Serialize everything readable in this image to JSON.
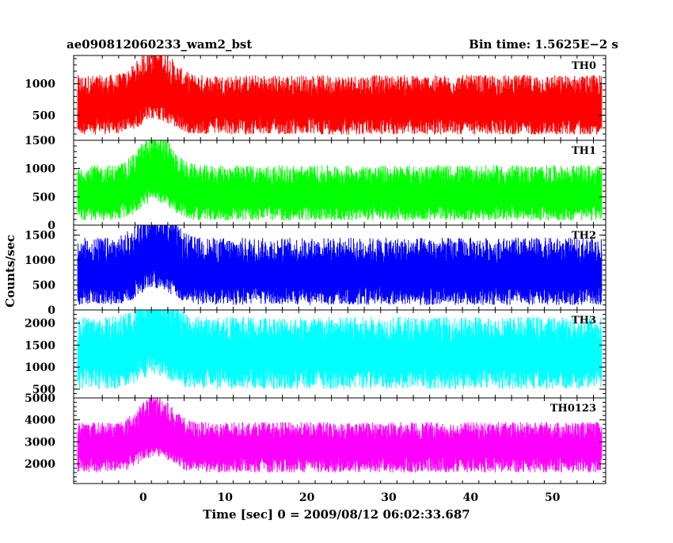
{
  "chart_data": {
    "type": "line",
    "title_left": "ae090812060233_wam2_bst",
    "title_right": "Bin time: 1.5625E−2 s",
    "xlabel": "Time [sec] 0 = 2009/08/12 06:02:33.687",
    "ylabel": "Counts/sec",
    "xlim": [
      -8.5,
      56.5
    ],
    "x_ticks": [
      "0",
      "10",
      "20",
      "30",
      "40",
      "50"
    ],
    "x_tick_values": [
      0,
      10,
      20,
      30,
      40,
      50
    ],
    "data_x_range": [
      -8,
      56
    ],
    "panels": [
      {
        "name": "TH0",
        "color": "#ff0000",
        "ylim": [
          100,
          1450
        ],
        "y_ticks": [
          "500",
          "1000"
        ],
        "y_tick_values": [
          500,
          1000
        ],
        "base": 620,
        "spread_low": 430,
        "spread_high": 520,
        "burst_peak": 1300
      },
      {
        "name": "TH1",
        "color": "#00ff00",
        "ylim": [
          0,
          1500
        ],
        "y_ticks": [
          "0",
          "500",
          "1000",
          "1500"
        ],
        "y_tick_values": [
          0,
          500,
          1000,
          1500
        ],
        "base": 500,
        "spread_low": 420,
        "spread_high": 560,
        "burst_peak": 1450
      },
      {
        "name": "TH2",
        "color": "#0000ff",
        "ylim": [
          0,
          1700
        ],
        "y_ticks": [
          "0",
          "500",
          "1000",
          "1500"
        ],
        "y_tick_values": [
          0,
          500,
          1000,
          1500
        ],
        "base": 650,
        "spread_low": 550,
        "spread_high": 800,
        "burst_peak": 1600
      },
      {
        "name": "TH3",
        "color": "#00ffff",
        "ylim": [
          300,
          2300
        ],
        "y_ticks": [
          "500",
          "1000",
          "1500",
          "2000"
        ],
        "y_tick_values": [
          500,
          1000,
          1500,
          2000
        ],
        "base": 1250,
        "spread_low": 750,
        "spread_high": 900,
        "burst_peak": 2150
      },
      {
        "name": "TH0123",
        "color": "#ff00ff",
        "ylim": [
          1100,
          5000
        ],
        "y_ticks": [
          "2000",
          "3000",
          "4000",
          "5000"
        ],
        "y_tick_values": [
          2000,
          3000,
          4000,
          5000
        ],
        "base": 2700,
        "spread_low": 1100,
        "spread_high": 1200,
        "burst_peak": 4800
      }
    ]
  }
}
